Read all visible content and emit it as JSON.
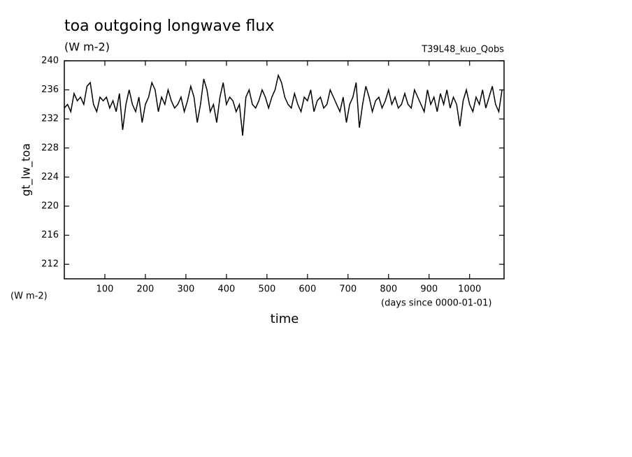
{
  "chart_data": {
    "type": "line",
    "title": "toa outgoing longwave flux",
    "subtitle": "(W m-2)",
    "annotation": "T39L48_kuo_Qobs",
    "ylabel": "gt_lw_toa",
    "yunits": "(W m-2)",
    "xlabel": "time",
    "xunits": "(days since 0000-01-01)",
    "xlim": [
      0,
      1085
    ],
    "ylim": [
      210,
      240
    ],
    "xticks": [
      100,
      200,
      300,
      400,
      500,
      600,
      700,
      800,
      900,
      1000
    ],
    "yticks": [
      212,
      216,
      220,
      224,
      228,
      232,
      236,
      240
    ],
    "x": [
      0,
      8,
      16,
      24,
      32,
      40,
      48,
      56,
      64,
      72,
      80,
      88,
      96,
      104,
      112,
      120,
      128,
      136,
      144,
      152,
      160,
      168,
      176,
      184,
      192,
      200,
      208,
      216,
      224,
      232,
      240,
      248,
      256,
      264,
      272,
      280,
      288,
      296,
      304,
      312,
      320,
      328,
      336,
      344,
      352,
      360,
      368,
      376,
      384,
      392,
      400,
      408,
      416,
      424,
      432,
      440,
      448,
      456,
      464,
      472,
      480,
      488,
      496,
      504,
      512,
      520,
      528,
      536,
      544,
      552,
      560,
      568,
      576,
      584,
      592,
      600,
      608,
      616,
      624,
      632,
      640,
      648,
      656,
      664,
      672,
      680,
      688,
      696,
      704,
      712,
      720,
      728,
      736,
      744,
      752,
      760,
      768,
      776,
      784,
      792,
      800,
      808,
      816,
      824,
      832,
      840,
      848,
      856,
      864,
      872,
      880,
      888,
      896,
      904,
      912,
      920,
      928,
      936,
      944,
      952,
      960,
      968,
      976,
      984,
      992,
      1000,
      1008,
      1016,
      1024,
      1032,
      1040,
      1048,
      1056,
      1064,
      1072,
      1080
    ],
    "series": [
      {
        "name": "gt_lw_toa",
        "color": "#000000",
        "values": [
          233.5,
          234,
          233,
          235.5,
          234.5,
          235,
          234,
          236.5,
          237,
          234,
          233,
          235,
          234.5,
          235,
          233.5,
          234.5,
          233,
          235.5,
          230.5,
          234,
          236,
          234,
          233,
          235,
          231.5,
          234,
          235,
          237,
          236,
          233,
          235,
          234,
          236,
          234.5,
          233.5,
          234,
          235,
          233,
          234.5,
          236.5,
          235,
          231.5,
          234,
          237.5,
          236,
          233,
          234,
          231.5,
          235,
          237,
          234,
          235,
          234.5,
          233,
          234,
          229.7,
          235,
          236,
          234,
          233.5,
          234.5,
          236,
          235,
          233.5,
          235,
          236,
          238,
          237,
          235,
          234,
          233.5,
          235.5,
          234,
          233,
          235,
          234.5,
          236,
          233,
          234.5,
          235,
          233.5,
          234,
          236,
          235,
          234,
          233,
          235,
          231.5,
          234,
          235,
          237,
          230.8,
          234,
          236.5,
          235,
          233,
          234.5,
          235,
          233.5,
          234.5,
          236,
          234,
          235,
          233.5,
          234,
          235.5,
          234,
          233.5,
          236,
          235,
          234,
          233,
          236,
          234,
          235,
          233,
          235.5,
          234,
          236,
          233.5,
          235,
          234,
          231,
          234.5,
          236,
          234,
          233,
          235,
          234,
          236,
          233.5,
          235,
          236.5,
          234,
          233,
          236
        ]
      }
    ]
  }
}
